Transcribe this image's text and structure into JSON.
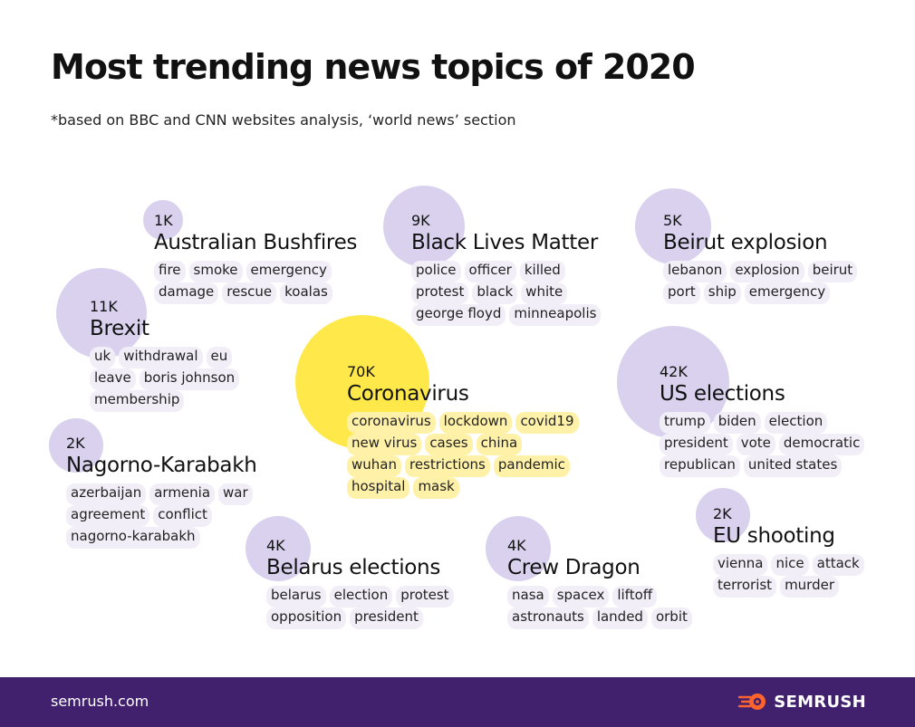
{
  "title": "Most trending news topics of 2020",
  "subtitle": "*based on BBC and CNN websites analysis, ‘world news’ section",
  "footer": {
    "url": "semrush.com",
    "brand": "SEMRUSH"
  },
  "colors": {
    "bubble": "#d9d1ee",
    "bubble_highlight": "#ffe94a",
    "tag": "#f1eef7",
    "tag_highlight": "#fff2a8",
    "footer_bg": "#41206e",
    "logo_accent": "#ff642d"
  },
  "topics": [
    {
      "id": "australian-bushfires",
      "count": "1K",
      "name": "Australian Bushfires",
      "tags": [
        [
          "fire",
          "smoke",
          "emergency"
        ],
        [
          "damage",
          "rescue",
          "koalas"
        ]
      ]
    },
    {
      "id": "black-lives-matter",
      "count": "9K",
      "name": "Black Lives Matter",
      "tags": [
        [
          "police",
          "officer",
          "killed"
        ],
        [
          "protest",
          "black",
          "white"
        ],
        [
          "george floyd",
          "minneapolis"
        ]
      ]
    },
    {
      "id": "beirut-explosion",
      "count": "5K",
      "name": "Beirut explosion",
      "tags": [
        [
          "lebanon",
          "explosion",
          "beirut"
        ],
        [
          "port",
          "ship",
          "emergency"
        ]
      ]
    },
    {
      "id": "brexit",
      "count": "11K",
      "name": "Brexit",
      "tags": [
        [
          "uk",
          "withdrawal",
          "eu"
        ],
        [
          "leave",
          "boris johnson"
        ],
        [
          "membership"
        ]
      ]
    },
    {
      "id": "coronavirus",
      "count": "70K",
      "name": "Coronavirus",
      "highlight": true,
      "tags": [
        [
          "coronavirus",
          "lockdown",
          "covid19"
        ],
        [
          "new virus",
          "cases",
          "china"
        ],
        [
          "wuhan",
          "restrictions",
          "pandemic"
        ],
        [
          "hospital",
          "mask"
        ]
      ]
    },
    {
      "id": "us-elections",
      "count": "42K",
      "name": "US elections",
      "tags": [
        [
          "trump",
          "biden",
          "election"
        ],
        [
          "president",
          "vote",
          "democratic"
        ],
        [
          "republican",
          "united states"
        ]
      ]
    },
    {
      "id": "nagorno-karabakh",
      "count": "2K",
      "name": "Nagorno-Karabakh",
      "tags": [
        [
          "azerbaijan",
          "armenia",
          "war"
        ],
        [
          "agreement",
          "conflict"
        ],
        [
          "nagorno-karabakh"
        ]
      ]
    },
    {
      "id": "eu-shooting",
      "count": "2K",
      "name": "EU shooting",
      "tags": [
        [
          "vienna",
          "nice",
          "attack"
        ],
        [
          "terrorist",
          "murder"
        ]
      ]
    },
    {
      "id": "belarus-elections",
      "count": "4K",
      "name": "Belarus elections",
      "tags": [
        [
          "belarus",
          "election",
          "protest"
        ],
        [
          "opposition",
          "president"
        ]
      ]
    },
    {
      "id": "crew-dragon",
      "count": "4K",
      "name": "Crew Dragon",
      "tags": [
        [
          "nasa",
          "spacex",
          "liftoff"
        ],
        [
          "astronauts",
          "landed",
          "orbit"
        ]
      ]
    }
  ]
}
